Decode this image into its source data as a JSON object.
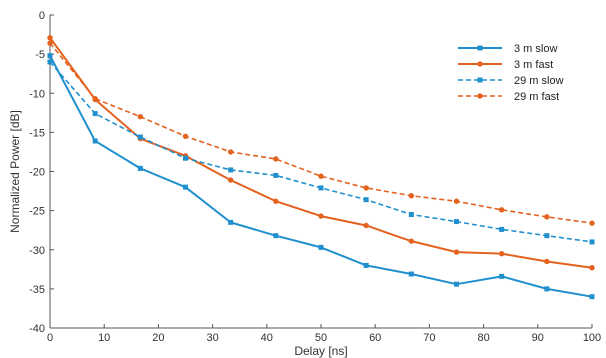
{
  "chart_data": {
    "type": "line",
    "title": "",
    "xlabel": "Delay [ns]",
    "ylabel": "Normalized Power [dB]",
    "xlim": [
      0,
      100
    ],
    "ylim": [
      -40,
      0
    ],
    "xticks": [
      0,
      10,
      20,
      30,
      40,
      50,
      60,
      70,
      80,
      90,
      100
    ],
    "yticks": [
      0,
      -5,
      -10,
      -15,
      -20,
      -25,
      -30,
      -35,
      -40
    ],
    "grid": false,
    "legend_position": "top-right",
    "x": [
      0,
      8.33,
      16.67,
      25,
      33.33,
      41.67,
      50,
      58.33,
      66.67,
      75,
      83.33,
      91.67,
      100
    ],
    "series": [
      {
        "name": "3 m slow",
        "color": "#1f8fce",
        "dash": "solid",
        "marker": "square",
        "values": [
          -5.2,
          -16.1,
          -19.6,
          -22.0,
          -26.5,
          -28.2,
          -29.7,
          -32.0,
          -33.1,
          -34.4,
          -33.4,
          -35.0,
          -36.0
        ]
      },
      {
        "name": "3 m fast",
        "color": "#e4621e",
        "dash": "solid",
        "marker": "circle",
        "values": [
          -2.9,
          -10.8,
          -15.8,
          -18.0,
          -21.1,
          -23.8,
          -25.7,
          -26.9,
          -28.9,
          -30.3,
          -30.5,
          -31.5,
          -32.3
        ]
      },
      {
        "name": "29 m slow",
        "color": "#1f8fce",
        "dash": "dashed",
        "marker": "square",
        "values": [
          -6.0,
          -12.6,
          -15.6,
          -18.3,
          -19.8,
          -20.5,
          -22.1,
          -23.6,
          -25.5,
          -26.4,
          -27.4,
          -28.2,
          -29.0
        ]
      },
      {
        "name": "29 m fast",
        "color": "#e4621e",
        "dash": "dashed",
        "marker": "circle",
        "values": [
          -3.6,
          -10.7,
          -13.0,
          -15.5,
          -17.5,
          -18.4,
          -20.6,
          -22.1,
          -23.1,
          -23.8,
          -24.9,
          -25.8,
          -26.6
        ]
      }
    ]
  }
}
